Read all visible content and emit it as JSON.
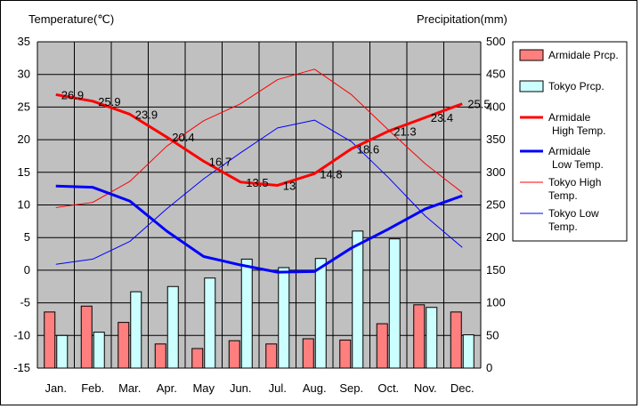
{
  "chart_data": {
    "type": "bar+line",
    "y_left_label": "Temperature(℃)",
    "y_right_label": "Precipitation(mm)",
    "y_left_range": [
      -15,
      35
    ],
    "y_left_ticks": [
      "35",
      "30",
      "25",
      "20",
      "15",
      "10",
      "5",
      "0",
      "-5",
      "-10",
      "-15"
    ],
    "y_right_range": [
      0,
      500
    ],
    "y_right_ticks": [
      "500",
      "450",
      "400",
      "350",
      "300",
      "250",
      "200",
      "150",
      "100",
      "50",
      "0"
    ],
    "grid": true,
    "legend_position": "right",
    "categories": [
      "Jan.",
      "Feb.",
      "Mar.",
      "Apr.",
      "May",
      "Jun.",
      "Jul.",
      "Aug.",
      "Sep.",
      "Oct.",
      "Nov.",
      "Dec."
    ],
    "bars": [
      {
        "name": "Armidale Prcp.",
        "axis": "right",
        "color": "#ff7f7f",
        "values": [
          86,
          95,
          70,
          37,
          30,
          42,
          37,
          45,
          43,
          68,
          97,
          86
        ]
      },
      {
        "name": "Tokyo Prcp.",
        "axis": "right",
        "color": "#ccffff",
        "values": [
          50,
          55,
          117,
          125,
          138,
          167,
          154,
          168,
          210,
          198,
          93,
          51
        ]
      }
    ],
    "lines": [
      {
        "name": "Armidale\nHigh Temp.",
        "color": "#ff0000",
        "width": 3,
        "values": [
          26.9,
          25.9,
          23.9,
          20.4,
          16.7,
          13.5,
          13,
          14.8,
          18.6,
          21.3,
          23.4,
          25.5
        ],
        "labels": [
          "26.9",
          "25.9",
          "23.9",
          "20.4",
          "16.7",
          "13.5",
          "13",
          "14.8",
          "18.6",
          "21.3",
          "23.4",
          "25.5"
        ]
      },
      {
        "name": "Armidale\nLow Temp.",
        "color": "#0000ff",
        "width": 3,
        "values": [
          12.9,
          12.7,
          10.6,
          6.0,
          2.1,
          0.8,
          -0.3,
          -0.2,
          3.4,
          6.3,
          9.4,
          11.4
        ]
      },
      {
        "name": "Tokyo High\nTemp.",
        "color": "#ff0000",
        "width": 1,
        "values": [
          9.6,
          10.4,
          13.6,
          19.0,
          22.9,
          25.5,
          29.2,
          30.8,
          26.9,
          21.5,
          16.3,
          11.9
        ]
      },
      {
        "name": "Tokyo Low\nTemp.",
        "color": "#0000ff",
        "width": 1,
        "values": [
          0.9,
          1.7,
          4.4,
          9.4,
          14.0,
          18.0,
          21.8,
          23.0,
          19.7,
          14.2,
          8.3,
          3.5
        ]
      }
    ]
  }
}
